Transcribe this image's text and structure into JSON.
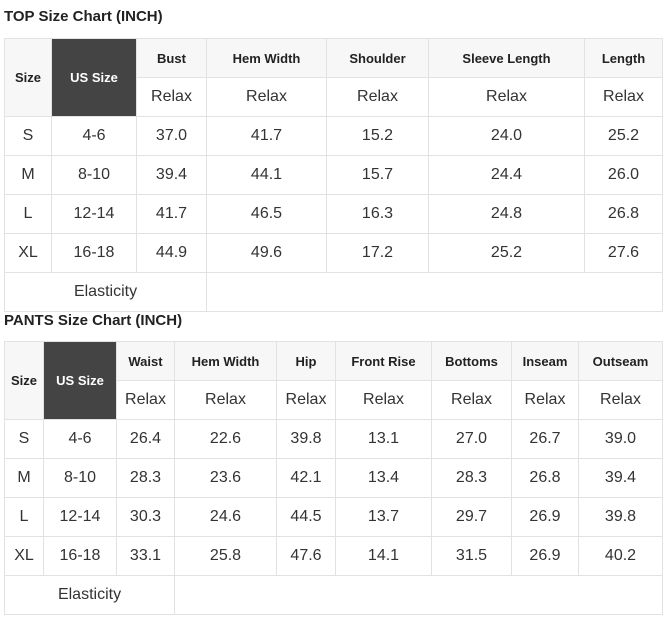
{
  "top": {
    "title": "TOP Size Chart (INCH)",
    "size_label": "Size",
    "us_label": "US Size",
    "headers": [
      "Bust",
      "Hem Width",
      "Shoulder",
      "Sleeve Length",
      "Length"
    ],
    "sub": "Relax",
    "rows": [
      [
        "S",
        "4-6",
        "37.0",
        "41.7",
        "15.2",
        "24.0",
        "25.2"
      ],
      [
        "M",
        "8-10",
        "39.4",
        "44.1",
        "15.7",
        "24.4",
        "26.0"
      ],
      [
        "L",
        "12-14",
        "41.7",
        "46.5",
        "16.3",
        "24.8",
        "26.8"
      ],
      [
        "XL",
        "16-18",
        "44.9",
        "49.6",
        "17.2",
        "25.2",
        "27.6"
      ]
    ],
    "footer": "Elasticity"
  },
  "pants": {
    "title": "PANTS Size Chart (INCH)",
    "size_label": "Size",
    "us_label": "US Size",
    "headers": [
      "Waist",
      "Hem Width",
      "Hip",
      "Front Rise",
      "Bottoms",
      "Inseam",
      "Outseam"
    ],
    "sub": "Relax",
    "rows": [
      [
        "S",
        "4-6",
        "26.4",
        "22.6",
        "39.8",
        "13.1",
        "27.0",
        "26.7",
        "39.0"
      ],
      [
        "M",
        "8-10",
        "28.3",
        "23.6",
        "42.1",
        "13.4",
        "28.3",
        "26.8",
        "39.4"
      ],
      [
        "L",
        "12-14",
        "30.3",
        "24.6",
        "44.5",
        "13.7",
        "29.7",
        "26.9",
        "39.8"
      ],
      [
        "XL",
        "16-18",
        "33.1",
        "25.8",
        "47.6",
        "14.1",
        "31.5",
        "26.9",
        "40.2"
      ]
    ],
    "footer": "Elasticity"
  },
  "colors": {
    "us_size_bg": "#444444",
    "header_bg": "#f7f7f7",
    "border": "#e2e2e2"
  }
}
